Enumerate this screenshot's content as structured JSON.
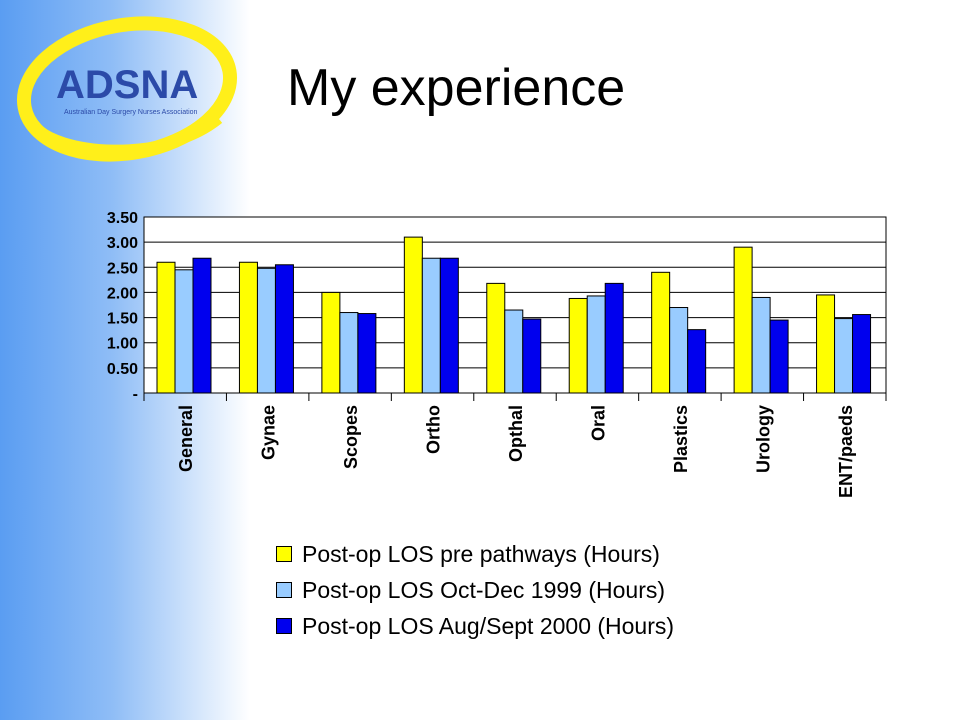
{
  "slide": {
    "title": "My experience",
    "logo_text": {
      "name": "ADSNA",
      "tagline": "Australian Day Surgery Nurses Association"
    }
  },
  "colors": {
    "background_gradient": [
      "#5a9df2",
      "#ffffff"
    ],
    "logo_yellow": "#ffef1a",
    "logo_text": "#2b4aa8"
  },
  "chart_data": {
    "type": "bar",
    "categories": [
      "General",
      "Gynae",
      "Scopes",
      "Ortho",
      "Opthal",
      "Oral",
      "Plastics",
      "Urology",
      "ENT/paeds"
    ],
    "series": [
      {
        "name": "Post-op LOS pre pathways (Hours)",
        "color": "#ffff00",
        "values": [
          2.6,
          2.6,
          2.0,
          3.1,
          2.18,
          1.88,
          2.4,
          2.9,
          1.95
        ]
      },
      {
        "name": "Post-op LOS Oct-Dec 1999 (Hours)",
        "color": "#99ccff",
        "values": [
          2.45,
          2.48,
          1.6,
          2.68,
          1.65,
          1.93,
          1.7,
          1.9,
          1.48
        ]
      },
      {
        "name": "Post-op LOS Aug/Sept 2000 (Hours)",
        "color": "#0000ee",
        "values": [
          2.68,
          2.55,
          1.58,
          2.68,
          1.47,
          2.18,
          1.26,
          1.45,
          1.56
        ]
      }
    ],
    "y_ticks": [
      "3.50",
      "3.00",
      "2.50",
      "2.00",
      "1.50",
      "1.00",
      "0.50",
      "-"
    ],
    "ylim": [
      0,
      3.5
    ],
    "grid": true,
    "legend": "bottom"
  }
}
